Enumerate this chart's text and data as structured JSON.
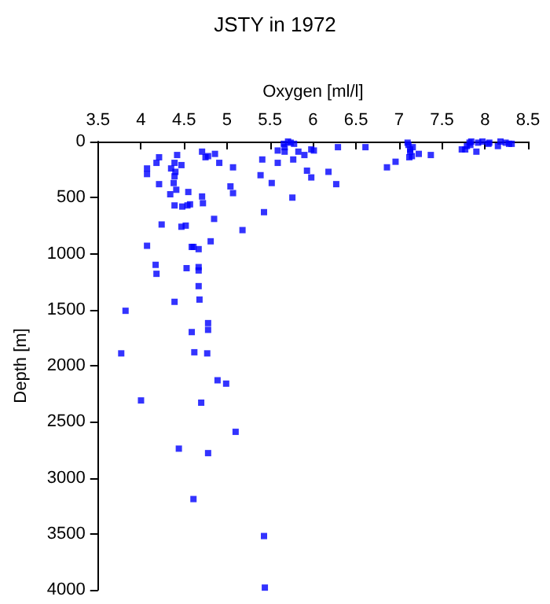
{
  "chart_data": {
    "type": "scatter",
    "title": "JSTY in 1972",
    "xlabel": "Oxygen [ml/l]",
    "ylabel": "Depth [m]",
    "x": [
      4.07,
      4.07,
      4.21,
      4.18,
      4.21,
      4.42,
      4.39,
      4.47,
      4.35,
      4.39,
      4.4,
      4.38,
      4.34,
      4.41,
      4.39,
      4.48,
      4.55,
      4.57,
      4.54,
      4.71,
      4.72,
      4.71,
      4.75,
      4.78,
      4.86,
      4.91,
      4.85,
      5.07,
      5.04,
      5.07,
      4.81,
      5.18,
      4.24,
      4.47,
      4.52,
      4.07,
      4.59,
      4.61,
      4.67,
      4.17,
      4.18,
      4.53,
      4.67,
      4.67,
      5.41,
      5.39,
      5.43,
      5.52,
      5.59,
      5.59,
      5.66,
      5.67,
      5.71,
      5.74,
      5.78,
      5.77,
      5.83,
      5.76,
      5.67,
      5.9,
      5.93,
      5.98,
      5.98,
      6.01,
      6.18,
      6.29,
      6.27,
      6.61,
      6.86,
      6.96,
      7.1,
      7.11,
      7.13,
      7.16,
      7.13,
      7.15,
      7.12,
      7.23,
      7.37,
      7.73,
      7.77,
      7.79,
      7.82,
      7.84,
      7.83,
      7.9,
      7.92,
      7.97,
      8.04,
      8.05,
      8.15,
      8.18,
      8.24,
      8.28,
      8.31,
      4.67,
      4.39,
      4.68,
      3.82,
      4.78,
      4.78,
      4.59,
      3.77,
      4.62,
      4.77,
      4.89,
      4.99,
      4,
      4.7,
      5.1,
      4.44,
      4.78,
      4.61,
      5.43,
      5.44
    ],
    "values": [
      240,
      290,
      380,
      190,
      140,
      120,
      190,
      210,
      240,
      310,
      270,
      370,
      470,
      430,
      570,
      580,
      450,
      560,
      570,
      490,
      550,
      90,
      140,
      130,
      110,
      190,
      690,
      230,
      400,
      460,
      890,
      790,
      740,
      760,
      750,
      930,
      940,
      940,
      960,
      1100,
      1180,
      1130,
      1120,
      1150,
      160,
      300,
      630,
      370,
      190,
      80,
      20,
      90,
      0,
      10,
      20,
      160,
      90,
      500,
      50,
      120,
      260,
      320,
      70,
      80,
      270,
      50,
      380,
      50,
      230,
      180,
      10,
      30,
      70,
      50,
      90,
      130,
      140,
      110,
      120,
      70,
      70,
      40,
      10,
      0,
      30,
      90,
      10,
      0,
      20,
      10,
      40,
      0,
      10,
      20,
      20,
      1290,
      1430,
      1410,
      1510,
      1620,
      1680,
      1700,
      1890,
      1880,
      1890,
      2130,
      2160,
      2310,
      2330,
      2590,
      2740,
      2780,
      3190,
      3520,
      3980
    ],
    "color": "#0000ff",
    "marker": "square",
    "xlim": [
      3.5,
      8.5
    ],
    "xticks": [
      3.5,
      4,
      4.5,
      5,
      5.5,
      6,
      6.5,
      7,
      7.5,
      8,
      8.5
    ],
    "ylim": [
      4000,
      0
    ],
    "yticks": [
      0,
      500,
      1000,
      1500,
      2000,
      2500,
      3000,
      3500,
      4000
    ],
    "grid": false
  }
}
